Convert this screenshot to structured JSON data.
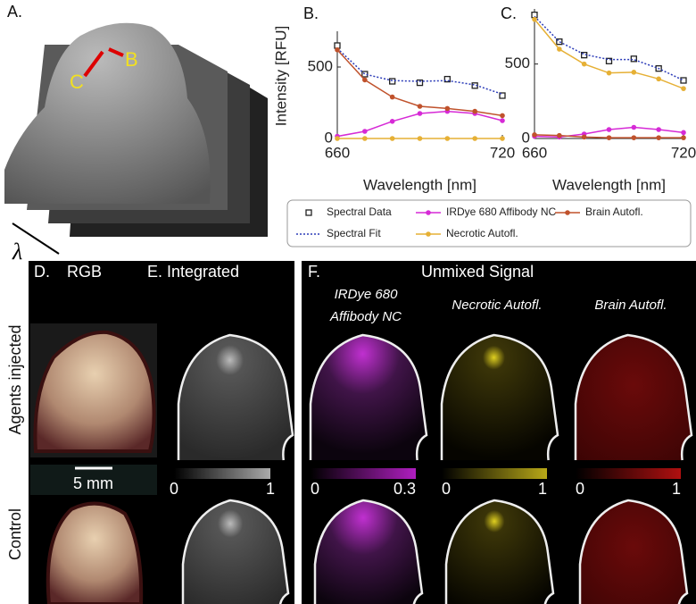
{
  "panel_a": {
    "label": "A.",
    "markers": [
      "B",
      "C"
    ],
    "axis_symbol": "λ"
  },
  "chart_data": [
    {
      "type": "line",
      "title": "B.",
      "x_label": "Wavelength [nm]",
      "y_label": "Intensity [RFU]",
      "x": [
        660,
        670,
        680,
        690,
        700,
        710,
        720
      ],
      "xlim": [
        660,
        720
      ],
      "xticks": [
        660,
        720
      ],
      "ylim": [
        0,
        750
      ],
      "yticks": [
        0,
        500
      ],
      "series": [
        {
          "name": "Spectral Data",
          "color": "#222222",
          "marker": "square",
          "linestyle": "none",
          "values": [
            650,
            450,
            400,
            390,
            415,
            370,
            300
          ]
        },
        {
          "name": "Spectral Fit",
          "color": "#2b3bb8",
          "marker": "none",
          "linestyle": "dotted",
          "values": [
            630,
            450,
            405,
            400,
            405,
            375,
            310
          ]
        },
        {
          "name": "IRDye 680 Affibody NC",
          "color": "#d62ad6",
          "marker": "circle",
          "linestyle": "solid",
          "values": [
            15,
            50,
            120,
            175,
            190,
            175,
            125
          ]
        },
        {
          "name": "Brain Autofl.",
          "color": "#c0522c",
          "marker": "circle",
          "linestyle": "solid",
          "values": [
            620,
            410,
            290,
            225,
            210,
            190,
            160
          ]
        },
        {
          "name": "Necrotic Autofl.",
          "color": "#e6b035",
          "marker": "circle",
          "linestyle": "solid",
          "values": [
            0,
            0,
            0,
            0,
            0,
            0,
            0
          ]
        }
      ]
    },
    {
      "type": "line",
      "title": "C.",
      "x_label": "Wavelength [nm]",
      "x": [
        660,
        670,
        680,
        690,
        700,
        710,
        720
      ],
      "xlim": [
        660,
        720
      ],
      "xticks": [
        660,
        720
      ],
      "ylim": [
        0,
        870
      ],
      "yticks": [
        0,
        500
      ],
      "series": [
        {
          "color": "#222222",
          "marker": "square",
          "linestyle": "none",
          "values": [
            830,
            650,
            560,
            520,
            535,
            470,
            390
          ]
        },
        {
          "color": "#2b3bb8",
          "marker": "none",
          "linestyle": "dotted",
          "values": [
            820,
            650,
            565,
            530,
            530,
            470,
            390
          ]
        },
        {
          "color": "#d62ad6",
          "marker": "circle",
          "linestyle": "solid",
          "values": [
            15,
            10,
            30,
            60,
            75,
            60,
            40
          ]
        },
        {
          "color": "#c0522c",
          "marker": "circle",
          "linestyle": "solid",
          "values": [
            25,
            20,
            10,
            5,
            5,
            5,
            5
          ]
        },
        {
          "color": "#e6b035",
          "marker": "circle",
          "linestyle": "solid",
          "values": [
            800,
            600,
            500,
            440,
            445,
            400,
            335
          ]
        }
      ]
    }
  ],
  "panel_d": {
    "label": "D.",
    "title": "RGB",
    "scale_bar": "5 mm"
  },
  "panel_e": {
    "label": "E.",
    "title": "Integrated",
    "colorbar": [
      0,
      1
    ]
  },
  "panel_f": {
    "label": "F.",
    "title": "Unmixed Signal",
    "channels": [
      {
        "title": [
          "IRDye 680",
          "Affibody NC"
        ],
        "colorbar": [
          0,
          0.3
        ]
      },
      {
        "title": [
          "Necrotic Autofl."
        ],
        "colorbar": [
          0,
          1
        ]
      },
      {
        "title": [
          "Brain Autofl."
        ],
        "colorbar": [
          0,
          1
        ]
      }
    ]
  },
  "row_labels": [
    "Agents injected",
    "Control"
  ]
}
